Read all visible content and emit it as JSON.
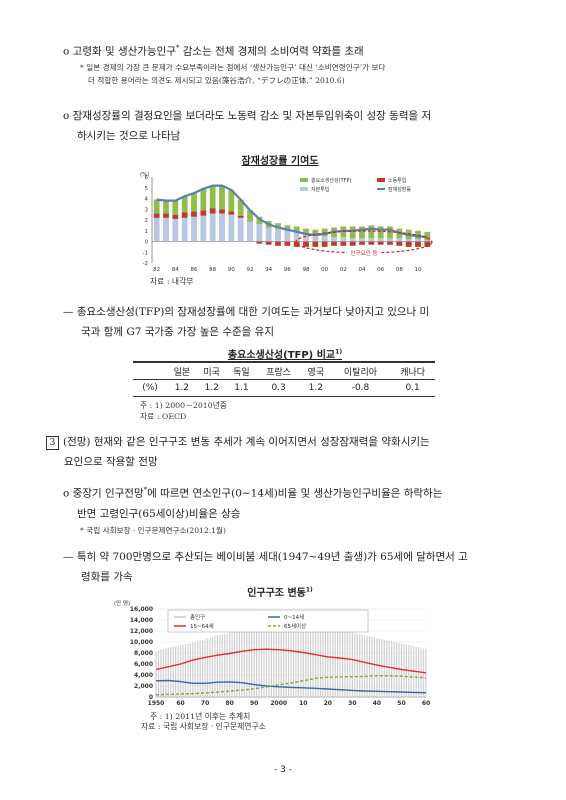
{
  "p1": {
    "marker": "o",
    "text": "고령화 및 생산가능인구",
    "star": "*",
    "text2": " 감소는 전체 경제의 소비여력 약화를 초래"
  },
  "note1": {
    "line1": "* 일본 경제의 가장 큰 문제가 수요부족이라는 점에서 ‘생산가능인구’ 대신 ‘소비연령인구’가 보다",
    "line2": "더 적합한 용어라는 의견도 제시되고 있음(藻谷浩介, “デフレの正体,” 2010.6)"
  },
  "p2": {
    "marker": "o",
    "line1": "잠재성장률의 결정요인을 보더라도 노동력 감소 및 자본투입위축이 성장 동력을 저",
    "line2": "하시키는 것으로 나타남"
  },
  "chart1": {
    "title": "잠재성장률 기여도",
    "source": "자료 : 내각부",
    "unit": "(%)",
    "annotation": "인구요인 등",
    "legend": [
      "총요소생산성(TFP)",
      "노동투입",
      "자본투입",
      "잠재성장률"
    ],
    "colors": {
      "tfp": "#8dbf4a",
      "labor": "#c0392b",
      "capital": "#b7c9e2",
      "potential": "#5b7db8",
      "annot": "#cc2222"
    }
  },
  "chart_data": [
    {
      "type": "bar",
      "title": "잠재성장률 기여도",
      "ylabel": "(%)",
      "ylim": [
        -2,
        6
      ],
      "yticks": [
        -2,
        -1,
        0,
        1,
        2,
        3,
        4,
        5,
        6
      ],
      "xticklabels": [
        "82",
        "84",
        "86",
        "88",
        "90",
        "92",
        "94",
        "96",
        "98",
        "00",
        "02",
        "04",
        "06",
        "08",
        "10"
      ],
      "x": [
        1982,
        1983,
        1984,
        1985,
        1986,
        1987,
        1988,
        1989,
        1990,
        1991,
        1992,
        1993,
        1994,
        1995,
        1996,
        1997,
        1998,
        1999,
        2000,
        2001,
        2002,
        2003,
        2004,
        2005,
        2006,
        2007,
        2008,
        2009,
        2010,
        2011
      ],
      "series": [
        {
          "name": "자본투입",
          "values": [
            2.2,
            2.2,
            2.1,
            2.2,
            2.3,
            2.4,
            2.6,
            2.6,
            2.5,
            2.2,
            1.9,
            1.6,
            1.3,
            1.2,
            1.0,
            0.9,
            0.7,
            0.6,
            0.5,
            0.4,
            0.4,
            0.3,
            0.3,
            0.3,
            0.3,
            0.3,
            0.3,
            0.2,
            0.2,
            0.1
          ]
        },
        {
          "name": "노동투입",
          "values": [
            0.4,
            0.4,
            0.4,
            0.5,
            0.5,
            0.5,
            0.5,
            0.4,
            0.3,
            0.2,
            0.0,
            -0.2,
            -0.3,
            -0.4,
            -0.4,
            -0.5,
            -0.5,
            -0.5,
            -0.5,
            -0.4,
            -0.4,
            -0.4,
            -0.3,
            -0.3,
            -0.3,
            -0.3,
            -0.4,
            -0.5,
            -0.5,
            -0.5
          ]
        },
        {
          "name": "총요소생산성(TFP)",
          "values": [
            1.3,
            1.2,
            1.3,
            1.5,
            1.7,
            2.0,
            2.1,
            2.2,
            2.0,
            1.5,
            1.0,
            0.7,
            0.6,
            0.5,
            0.5,
            0.5,
            0.5,
            0.5,
            0.7,
            0.9,
            1.0,
            1.1,
            1.1,
            1.2,
            1.1,
            1.1,
            0.9,
            0.9,
            0.8,
            0.8
          ]
        },
        {
          "name": "잠재성장률",
          "values": [
            3.9,
            3.8,
            3.8,
            4.2,
            4.5,
            4.9,
            5.2,
            5.2,
            4.8,
            3.9,
            2.9,
            2.1,
            1.6,
            1.3,
            1.1,
            0.9,
            0.7,
            0.6,
            0.7,
            0.9,
            1.0,
            1.0,
            1.1,
            1.2,
            1.1,
            1.1,
            0.8,
            0.6,
            0.5,
            0.4
          ]
        }
      ]
    },
    {
      "type": "table",
      "title": "총요소생산성(TFP) 비교",
      "columns": [
        "일본",
        "미국",
        "독일",
        "프랑스",
        "영국",
        "이탈리아",
        "캐나다"
      ],
      "row_label": "(%)",
      "values": [
        "1.2",
        "1.2",
        "1.1",
        "0.3",
        "1.2",
        "-0.8",
        "0.1"
      ]
    },
    {
      "type": "line",
      "title": "인구구조 변동",
      "ylabel": "(만 명)",
      "ylim": [
        0,
        16000
      ],
      "yticks": [
        "0",
        "2,000",
        "4,000",
        "6,000",
        "8,000",
        "10,000",
        "12,000",
        "14,000",
        "16,000"
      ],
      "xticklabels": [
        "1950",
        "60",
        "70",
        "80",
        "90",
        "2000",
        "10",
        "20",
        "30",
        "40",
        "50",
        "60"
      ],
      "x": [
        1950,
        1955,
        1960,
        1965,
        1970,
        1975,
        1980,
        1985,
        1990,
        1995,
        2000,
        2005,
        2010,
        2015,
        2020,
        2025,
        2030,
        2035,
        2040,
        2045,
        2050,
        2055,
        2060
      ],
      "series": [
        {
          "name": "총인구",
          "values": [
            8300,
            9000,
            9400,
            9900,
            10500,
            11200,
            11700,
            12100,
            12400,
            12600,
            12700,
            12800,
            12800,
            12700,
            12400,
            12100,
            11700,
            11200,
            10700,
            10200,
            9700,
            9200,
            8700
          ]
        },
        {
          "name": "0~14세",
          "values": [
            2950,
            3000,
            2800,
            2500,
            2500,
            2700,
            2750,
            2600,
            2250,
            2000,
            1850,
            1750,
            1680,
            1580,
            1460,
            1320,
            1200,
            1100,
            1030,
            970,
            900,
            830,
            790
          ]
        },
        {
          "name": "15~64세",
          "values": [
            5000,
            5500,
            6000,
            6700,
            7200,
            7600,
            7900,
            8300,
            8600,
            8700,
            8600,
            8400,
            8100,
            7700,
            7300,
            7100,
            6800,
            6300,
            5800,
            5400,
            5000,
            4700,
            4400
          ]
        },
        {
          "name": "65세이상",
          "values": [
            400,
            480,
            540,
            620,
            740,
            890,
            1070,
            1250,
            1490,
            1830,
            2200,
            2570,
            2950,
            3400,
            3600,
            3650,
            3690,
            3740,
            3870,
            3860,
            3770,
            3640,
            3460
          ]
        }
      ]
    }
  ],
  "p3": {
    "dash": "—",
    "line1": "총요소생산성(TFP)의 잠재성장률에 대한 기여도는 과거보다 낮아지고 있으나 미",
    "line2": "국과 함께 G7 국가중 가장 높은 수준을 유지"
  },
  "table": {
    "title": "총요소생산성(TFP) 비교",
    "title_sup": "1)",
    "note": "주 : 1)  2000－2010년중",
    "source": "자료 : OECD"
  },
  "p4": {
    "box": "3",
    "line1": "(전망) 현재와 같은 인구구조 변동 추세가 계속 이어지면서 성장잠재력을 약화시키는",
    "line2": "요인으로 작용할 전망"
  },
  "p5": {
    "marker": "o",
    "line1a": "중장기 인구전망",
    "star": "*",
    "line1b": "에 따르면 연소인구(0~14세)비율 및 생산가능인구비율은 하락하는",
    "line2": "반면 고령인구(65세이상)비율은 상승"
  },
  "note2": "* 국립 사회보장ㆍ인구문제연구소(2012.1월)",
  "p6": {
    "dash": "—",
    "line1": "특히 약 700만명으로 추산되는 베이비붐 세대(1947~49년 출생)가 65세에 달하면서 고",
    "line2": "령화를 가속"
  },
  "chart2": {
    "title": "인구구조 변동",
    "title_sup": "1)",
    "unit": "(만 명)",
    "legend": [
      "총인구",
      "0~14세",
      "15~64세",
      "65세이상"
    ],
    "note": "주 : 1)  2011년 이후는 추계치",
    "source": "자료 : 국립 사회보장ㆍ인구문제연구소",
    "colors": {
      "total": "#cfcfcf",
      "young": "#3a66a8",
      "working": "#e03030",
      "old": "#7aa83a"
    }
  },
  "page_number": "- 3 -"
}
